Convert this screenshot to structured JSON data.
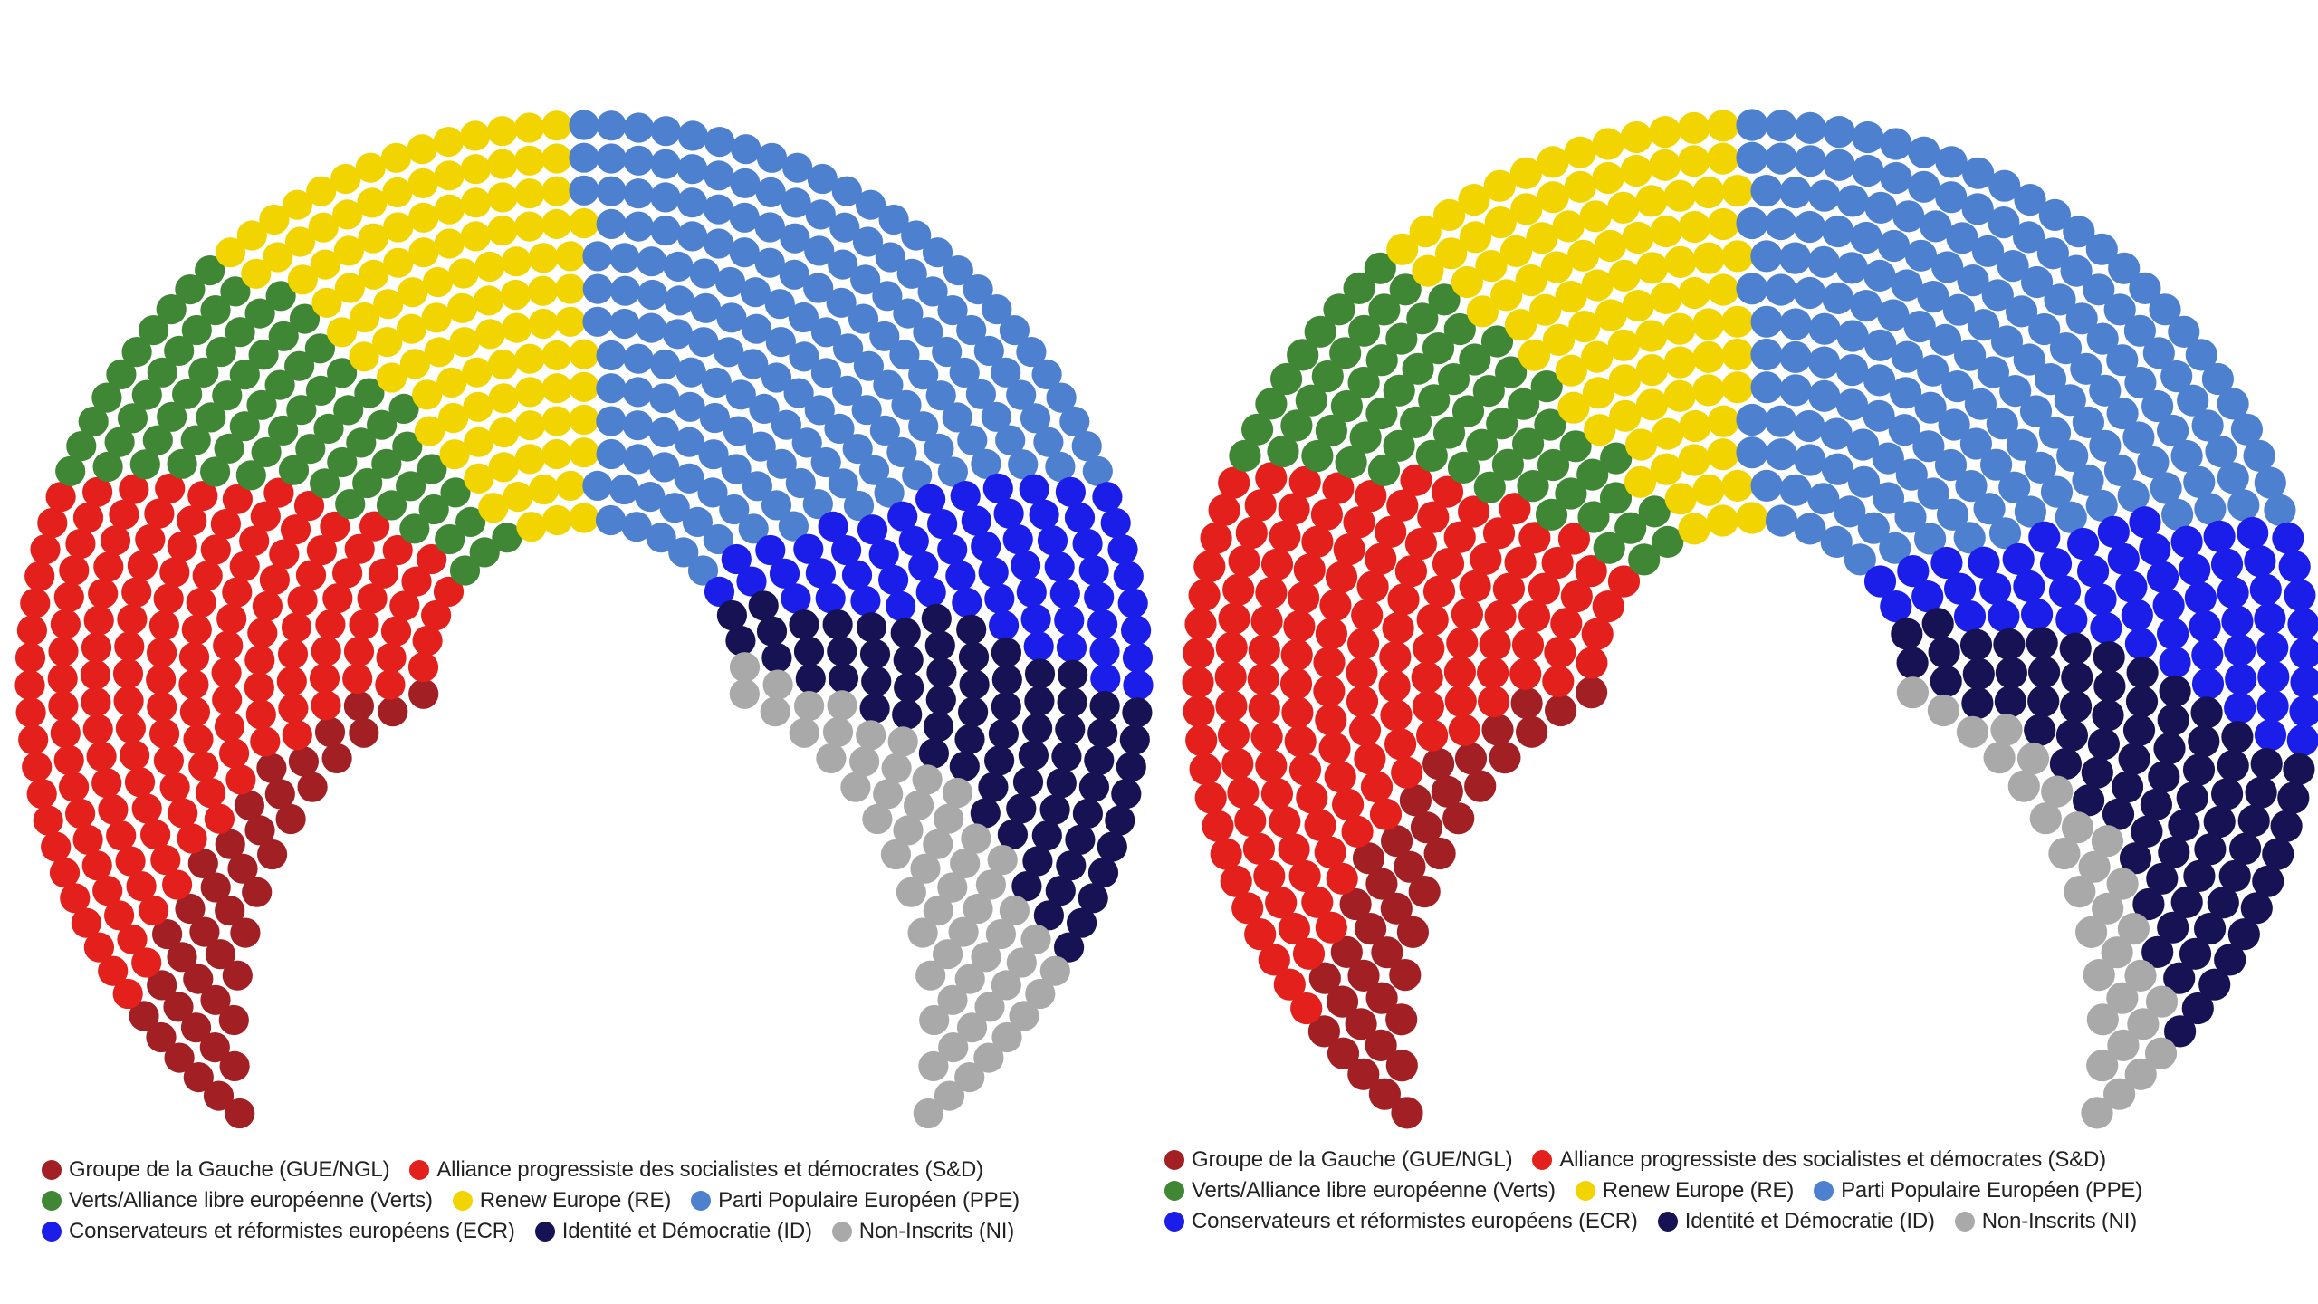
{
  "page": {
    "background": "#ffffff"
  },
  "parties": [
    {
      "id": "gue-ngl",
      "label": "Groupe de la Gauche (GUE/NGL)",
      "color": "#a21f24"
    },
    {
      "id": "sd",
      "label": "Alliance progressiste des socialistes et démocrates (S&D)",
      "color": "#e3201b"
    },
    {
      "id": "verts",
      "label": "Verts/Alliance libre européenne (Verts)",
      "color": "#3f8735"
    },
    {
      "id": "re",
      "label": "Renew Europe (RE)",
      "color": "#f2d500"
    },
    {
      "id": "ppe",
      "label": "Parti Populaire Européen (PPE)",
      "color": "#4d80cf"
    },
    {
      "id": "ecr",
      "label": "Conservateurs et réformistes européens (ECR)",
      "color": "#1b1de8"
    },
    {
      "id": "id",
      "label": "Identité et Démocratie (ID)",
      "color": "#161253"
    },
    {
      "id": "ni",
      "label": "Non-Inscrits (NI)",
      "color": "#a9a9a9"
    }
  ],
  "legend": {
    "rows": [
      [
        0,
        1
      ],
      [
        2,
        3,
        4
      ],
      [
        5,
        6,
        7
      ]
    ],
    "position": "below-chart"
  },
  "chart_data": [
    {
      "type": "hemicycle",
      "position": "left",
      "total_seats": 751,
      "categories": [
        "Groupe de la Gauche (GUE/NGL)",
        "Alliance progressiste des socialistes et démocrates (S&D)",
        "Verts/Alliance libre européenne (Verts)",
        "Renew Europe (RE)",
        "Parti Populaire Européen (PPE)",
        "Conservateurs et réformistes européens (ECR)",
        "Identité et Démocratie (ID)",
        "Non-Inscrits (NI)"
      ],
      "values": [
        41,
        154,
        74,
        108,
        182,
        62,
        73,
        57
      ]
    },
    {
      "type": "hemicycle",
      "position": "right",
      "total_seats": 705,
      "categories": [
        "Groupe de la Gauche (GUE/NGL)",
        "Alliance progressiste des socialistes et démocrates (S&D)",
        "Verts/Alliance libre européenne (Verts)",
        "Renew Europe (RE)",
        "Parti Populaire Européen (PPE)",
        "Conservateurs et réformistes européens (ECR)",
        "Identité et Démocratie (ID)",
        "Non-Inscrits (NI)"
      ],
      "values": [
        39,
        147,
        67,
        97,
        187,
        61,
        76,
        31
      ]
    }
  ]
}
